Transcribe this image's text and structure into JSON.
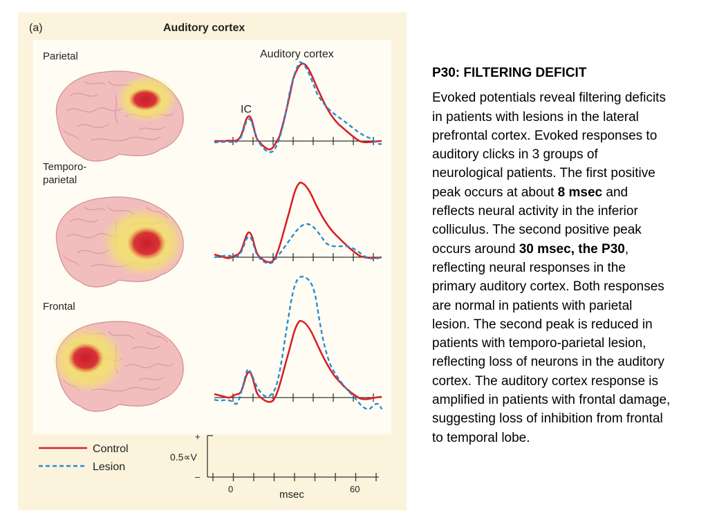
{
  "figure": {
    "panel_letter": "(a)",
    "title": "Auditory cortex",
    "lesions": [
      {
        "label": [
          "Parietal"
        ]
      },
      {
        "label": [
          "Temporo-",
          "parietal"
        ]
      },
      {
        "label": [
          "Frontal"
        ]
      }
    ],
    "trace_labels": {
      "auditory_cortex": "Auditory cortex",
      "ic": "IC"
    },
    "legend": {
      "control": "Control",
      "lesion": "Lesion"
    },
    "scale": {
      "plus": "+",
      "minus": "–",
      "amplitude": "0.5∝V",
      "tick_start": "0",
      "tick_end": "60",
      "unit": "msec"
    },
    "colors": {
      "control": "#d81f26",
      "lesion": "#2a8bd0",
      "brain": "#f0b8b8",
      "activation_core": "#d3262d",
      "activation_halo": "#f2e46a",
      "panel_bg": "#fbf3dc"
    }
  },
  "text": {
    "heading": "P30: FILTERING DEFICIT",
    "body": [
      {
        "t": "Evoked potentials reveal filtering deficits in patients with lesions in the lateral prefrontal cortex. Evoked responses to auditory clicks in 3 groups of neurological patients. The first positive peak occurs at about "
      },
      {
        "t": "8 msec",
        "b": true
      },
      {
        "t": " and reflects neural activity in the inferior colliculus. The second positive peak occurs around "
      },
      {
        "t": "30 msec, the P30",
        "b": true
      },
      {
        "t": ", reflecting neural responses in the primary auditory cortex. Both responses are normal in patients with parietal lesion. The second peak is reduced in patients with temporo-parietal lesion, reflecting loss of neurons in the auditory cortex. The auditory cortex response is amplified in patients with frontal damage, suggesting loss of inhibition from frontal to temporal lobe."
      }
    ]
  }
}
